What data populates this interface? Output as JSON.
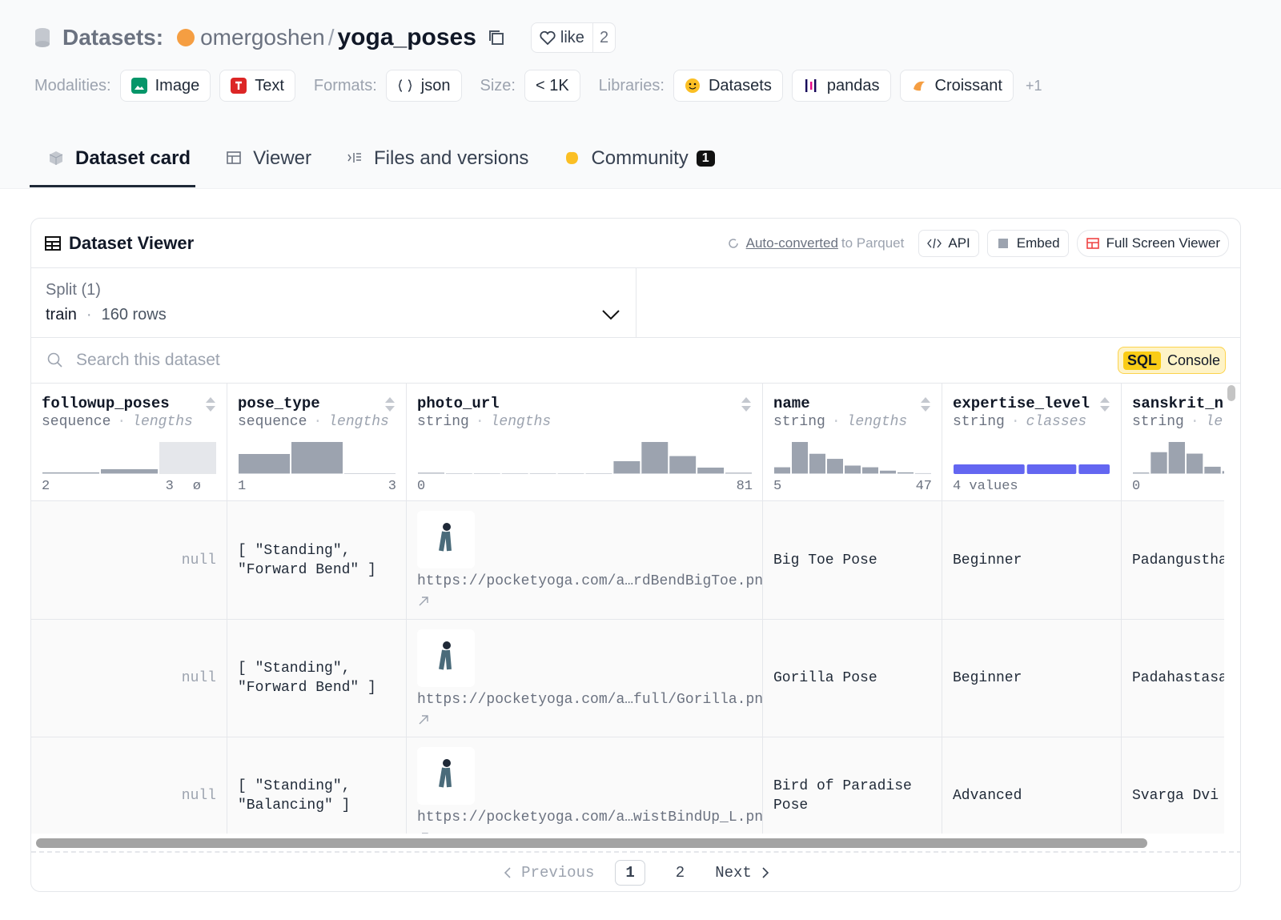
{
  "header": {
    "section": "Datasets:",
    "owner": "omergoshen",
    "separator": "/",
    "repo": "yoga_poses",
    "like": "like",
    "likes": "2"
  },
  "tags": {
    "modalities_label": "Modalities:",
    "modalities": [
      "Image",
      "Text"
    ],
    "formats_label": "Formats:",
    "formats": [
      "json"
    ],
    "size_label": "Size:",
    "size": "< 1K",
    "libraries_label": "Libraries:",
    "libraries": [
      "Datasets",
      "pandas",
      "Croissant"
    ],
    "more": "+1"
  },
  "tabs": [
    {
      "label": "Dataset card"
    },
    {
      "label": "Viewer"
    },
    {
      "label": "Files and versions"
    },
    {
      "label": "Community",
      "badge": "1"
    }
  ],
  "viewer": {
    "title": "Dataset Viewer",
    "parquet_link": "Auto-converted",
    "parquet_rest": "to Parquet",
    "buttons": [
      "API",
      "Embed",
      "Full Screen Viewer"
    ],
    "split_label": "Split (1)",
    "split": "train",
    "dot": "·",
    "rows_count": "160 rows",
    "search": "Search this dataset",
    "sql": "SQL",
    "console": "Console",
    "columns": [
      {
        "name": "followup_poses",
        "type": "sequence",
        "stat": "lengths",
        "hist": [
          2,
          6
        ],
        "nulls": 40,
        "axis": [
          "2",
          "3",
          "ø"
        ]
      },
      {
        "name": "pose_type",
        "type": "sequence",
        "stat": "lengths",
        "hist": [
          25,
          40,
          1
        ],
        "axis": [
          "1",
          "3"
        ]
      },
      {
        "name": "photo_url",
        "type": "string",
        "stat": "lengths",
        "hist": [
          1,
          0,
          0,
          0,
          0,
          0,
          0,
          10,
          25,
          14,
          5,
          1
        ],
        "axis": [
          "0",
          "81"
        ]
      },
      {
        "name": "name",
        "type": "string",
        "stat": "lengths",
        "hist": [
          8,
          38,
          24,
          18,
          10,
          8,
          4,
          2,
          1
        ],
        "axis": [
          "5",
          "47"
        ]
      },
      {
        "name": "expertise_level",
        "type": "string",
        "stat": "classes",
        "classes": [
          88,
          62,
          40
        ],
        "axis": [
          "4 values"
        ]
      },
      {
        "name": "sanskrit_na",
        "type": "string",
        "stat": "le",
        "hist": [
          2,
          30,
          44,
          28,
          10,
          4
        ],
        "axis": [
          "0"
        ]
      }
    ],
    "rows": [
      [
        "null",
        "[ \"Standing\", \"Forward Bend\" ]",
        "https://pocketyoga.com/a…rdBendBigToe.png",
        "Big Toe Pose",
        "Beginner",
        "Padangustha"
      ],
      [
        "null",
        "[ \"Standing\", \"Forward Bend\" ]",
        "https://pocketyoga.com/a…full/Gorilla.png",
        "Gorilla Pose",
        "Beginner",
        "Padahastasa"
      ],
      [
        "null",
        "[ \"Standing\", \"Balancing\" ]",
        "https://pocketyoga.com/a…wistBindUp_L.png",
        "Bird of Paradise Pose",
        "Advanced",
        "Svarga Dvi"
      ]
    ],
    "pager": {
      "previous": "Previous",
      "pages": [
        "1",
        "2"
      ],
      "next": "Next"
    }
  }
}
